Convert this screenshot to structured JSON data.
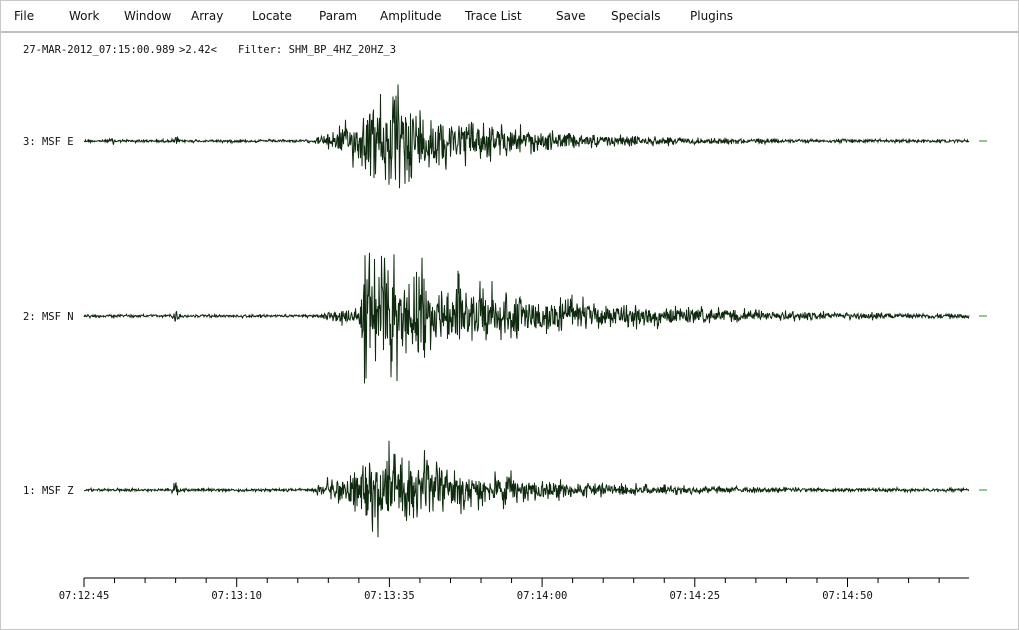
{
  "menu": [
    "File",
    "Work",
    "Window",
    "Array",
    "Locate",
    "Param",
    "Amplitude",
    "Trace List",
    "Save",
    "Specials",
    "Plugins"
  ],
  "status": {
    "time": "27-MAR-2012_07:15:00.989",
    "amplitude": ">2.42<",
    "filter": "Filter: SHM_BP_4HZ_20HZ_3"
  },
  "traces": [
    {
      "label": "3: MSF E"
    },
    {
      "label": "2: MSF N"
    },
    {
      "label": "1: MSF Z"
    }
  ],
  "time_axis": {
    "labels": [
      "07:12:45",
      "07:13:10",
      "07:13:35",
      "07:14:00",
      "07:14:25",
      "07:14:50"
    ]
  }
}
